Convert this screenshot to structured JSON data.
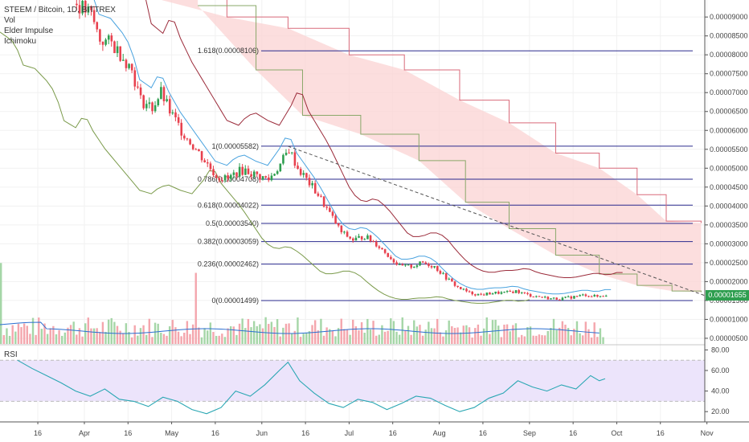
{
  "legend": {
    "title": "STEEM / Bitcoin, 1D, BITTREX",
    "indicators": [
      "Vol",
      "Elder Impulse",
      "Ichimoku"
    ]
  },
  "rsi_label": "RSI",
  "last_price_tag": "0.00001655",
  "colors": {
    "up": "#2e9e4f",
    "down": "#e8414e",
    "up_volume": "#a5d6a7",
    "down_volume": "#f4a6ad",
    "fib_line": "#2a2a8e",
    "cloud_fill": "#fbd3d3",
    "tenkan": "#4aa3df",
    "kijun": "#9b2b3a",
    "chikou": "#7a9a4a",
    "span_b": "#d96a7a",
    "span_a": "#8aa86a",
    "rsi_line": "#2aa7b3",
    "rsi_band": "#ece4fb",
    "trendline": "#555555"
  },
  "chart_data": [
    {
      "type": "line",
      "title": "STEEM / Bitcoin, 1D, BITTREX",
      "price_axis": {
        "ticks": [
          "0.00009000",
          "0.00008500",
          "0.00008000",
          "0.00007500",
          "0.00007000",
          "0.00006500",
          "0.00006000",
          "0.00005500",
          "0.00005000",
          "0.00004500",
          "0.00004000",
          "0.00003500",
          "0.00003000",
          "0.00002500",
          "0.00002000",
          "0.00001500",
          "0.00001000",
          "0.00000500"
        ],
        "range": [
          3.5e-06,
          9.45e-05
        ]
      },
      "time_axis": {
        "labels": [
          "16",
          "Apr",
          "16",
          "May",
          "16",
          "Jun",
          "16",
          "Jul",
          "16",
          "Aug",
          "16",
          "Sep",
          "16",
          "Oct",
          "16",
          "Nov"
        ]
      },
      "close_series": [
        [
          "2018-03-29",
          9.35e-05
        ],
        [
          "2018-04-03",
          9.05e-05
        ],
        [
          "2018-04-06",
          8.4e-05
        ],
        [
          "2018-04-10",
          8.3e-05
        ],
        [
          "2018-04-14",
          7.95e-05
        ],
        [
          "2018-04-17",
          7.6e-05
        ],
        [
          "2018-04-20",
          6.8e-05
        ],
        [
          "2018-04-24",
          6.6e-05
        ],
        [
          "2018-04-27",
          7e-05
        ],
        [
          "2018-04-30",
          6.5e-05
        ],
        [
          "2018-05-04",
          6e-05
        ],
        [
          "2018-05-08",
          5.6e-05
        ],
        [
          "2018-05-12",
          5.2e-05
        ],
        [
          "2018-05-16",
          4.8e-05
        ],
        [
          "2018-05-20",
          4.7e-05
        ],
        [
          "2018-05-23",
          4.9e-05
        ],
        [
          "2018-05-26",
          4.95e-05
        ],
        [
          "2018-05-30",
          4.8e-05
        ],
        [
          "2018-06-03",
          4.7e-05
        ],
        [
          "2018-06-07",
          5.1e-05
        ],
        [
          "2018-06-10",
          5.5e-05
        ],
        [
          "2018-06-13",
          5e-05
        ],
        [
          "2018-06-16",
          4.7e-05
        ],
        [
          "2018-06-20",
          4.3e-05
        ],
        [
          "2018-06-24",
          3.8e-05
        ],
        [
          "2018-06-28",
          3.3e-05
        ],
        [
          "2018-07-02",
          3.1e-05
        ],
        [
          "2018-07-06",
          3.2e-05
        ],
        [
          "2018-07-10",
          3e-05
        ],
        [
          "2018-07-14",
          2.7e-05
        ],
        [
          "2018-07-18",
          2.4e-05
        ],
        [
          "2018-07-22",
          2.4e-05
        ],
        [
          "2018-07-26",
          2.5e-05
        ],
        [
          "2018-07-30",
          2.4e-05
        ],
        [
          "2018-08-03",
          2.1e-05
        ],
        [
          "2018-08-07",
          1.85e-05
        ],
        [
          "2018-08-11",
          1.7e-05
        ],
        [
          "2018-08-15",
          1.65e-05
        ],
        [
          "2018-08-19",
          1.7e-05
        ],
        [
          "2018-08-23",
          1.7e-05
        ],
        [
          "2018-08-27",
          1.75e-05
        ],
        [
          "2018-08-31",
          1.65e-05
        ],
        [
          "2018-09-04",
          1.6e-05
        ],
        [
          "2018-09-08",
          1.55e-05
        ],
        [
          "2018-09-12",
          1.55e-05
        ],
        [
          "2018-09-16",
          1.6e-05
        ],
        [
          "2018-09-20",
          1.65e-05
        ],
        [
          "2018-09-24",
          1.6e-05
        ],
        [
          "2018-09-27",
          1.655e-05
        ]
      ],
      "fibonacci_levels": [
        {
          "label": "1.618(0.00008106)",
          "value": 8.106e-05
        },
        {
          "label": "1(0.00005582)",
          "value": 5.582e-05
        },
        {
          "label": "0.786(0.00004708)",
          "value": 4.708e-05
        },
        {
          "label": "0.618(0.00004022)",
          "value": 4.022e-05
        },
        {
          "label": "0.5(0.00003540)",
          "value": 3.54e-05
        },
        {
          "label": "0.382(0.00003059)",
          "value": 3.059e-05
        },
        {
          "label": "0.236(0.00002462)",
          "value": 2.462e-05
        },
        {
          "label": "0(0.00001499)",
          "value": 1.499e-05
        }
      ],
      "trendline": [
        [
          "2018-06-10",
          5.58e-05
        ],
        [
          "2018-11-05",
          1.5e-05
        ]
      ],
      "ichimoku": {
        "span_b": [
          [
            "2018-04-25",
            9.5e-05
          ],
          [
            "2018-05-20",
            9e-05
          ],
          [
            "2018-06-10",
            8.7e-05
          ],
          [
            "2018-07-01",
            8e-05
          ],
          [
            "2018-07-20",
            7.6e-05
          ],
          [
            "2018-08-08",
            6.8e-05
          ],
          [
            "2018-08-25",
            6.2e-05
          ],
          [
            "2018-09-10",
            5.4e-05
          ],
          [
            "2018-09-25",
            5e-05
          ],
          [
            "2018-10-08",
            4.3e-05
          ],
          [
            "2018-10-18",
            3.6e-05
          ],
          [
            "2018-10-30",
            3.55e-05
          ]
        ],
        "span_a": [
          [
            "2018-05-10",
            9.3e-05
          ],
          [
            "2018-05-30",
            7.6e-05
          ],
          [
            "2018-06-15",
            6.4e-05
          ],
          [
            "2018-07-05",
            5.9e-05
          ],
          [
            "2018-07-25",
            5.2e-05
          ],
          [
            "2018-08-10",
            4.1e-05
          ],
          [
            "2018-08-25",
            3.4e-05
          ],
          [
            "2018-09-10",
            2.7e-05
          ],
          [
            "2018-09-25",
            2.2e-05
          ],
          [
            "2018-10-08",
            1.9e-05
          ],
          [
            "2018-10-20",
            1.75e-05
          ],
          [
            "2018-10-30",
            1.72e-05
          ]
        ]
      },
      "volume_axis_max": 100
    },
    {
      "type": "line",
      "title": "RSI",
      "y_ticks": [
        "80.00",
        "60.00",
        "40.00",
        "20.00"
      ],
      "ylim": [
        10,
        85
      ],
      "bands": [
        30,
        70
      ],
      "series": [
        {
          "values": [
            [
              "2018-03-09",
              70
            ],
            [
              "2018-03-14",
              62
            ],
            [
              "2018-03-19",
              55
            ],
            [
              "2018-03-24",
              48
            ],
            [
              "2018-03-29",
              40
            ],
            [
              "2018-04-03",
              35
            ],
            [
              "2018-04-08",
              42
            ],
            [
              "2018-04-13",
              32
            ],
            [
              "2018-04-18",
              30
            ],
            [
              "2018-04-23",
              25
            ],
            [
              "2018-04-28",
              34
            ],
            [
              "2018-05-03",
              30
            ],
            [
              "2018-05-08",
              22
            ],
            [
              "2018-05-13",
              18
            ],
            [
              "2018-05-18",
              24
            ],
            [
              "2018-05-23",
              40
            ],
            [
              "2018-05-28",
              35
            ],
            [
              "2018-06-02",
              46
            ],
            [
              "2018-06-07",
              60
            ],
            [
              "2018-06-10",
              68
            ],
            [
              "2018-06-14",
              50
            ],
            [
              "2018-06-19",
              38
            ],
            [
              "2018-06-24",
              28
            ],
            [
              "2018-06-29",
              24
            ],
            [
              "2018-07-04",
              32
            ],
            [
              "2018-07-09",
              29
            ],
            [
              "2018-07-14",
              22
            ],
            [
              "2018-07-19",
              28
            ],
            [
              "2018-07-24",
              35
            ],
            [
              "2018-07-29",
              33
            ],
            [
              "2018-08-03",
              26
            ],
            [
              "2018-08-08",
              20
            ],
            [
              "2018-08-13",
              24
            ],
            [
              "2018-08-18",
              33
            ],
            [
              "2018-08-23",
              38
            ],
            [
              "2018-08-28",
              50
            ],
            [
              "2018-09-02",
              44
            ],
            [
              "2018-09-07",
              40
            ],
            [
              "2018-09-12",
              46
            ],
            [
              "2018-09-17",
              42
            ],
            [
              "2018-09-22",
              55
            ],
            [
              "2018-09-25",
              50
            ],
            [
              "2018-09-27",
              52
            ]
          ]
        }
      ]
    }
  ]
}
